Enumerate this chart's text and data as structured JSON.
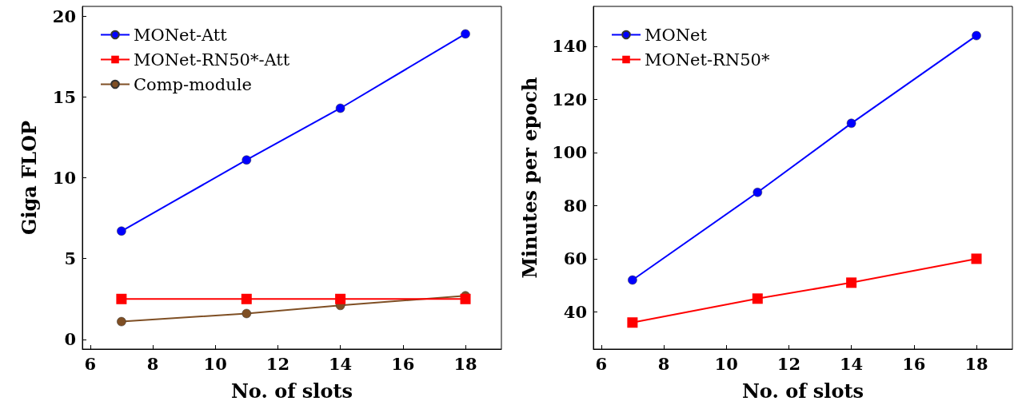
{
  "chart_data": [
    {
      "type": "line",
      "xlabel": "No. of slots",
      "ylabel": "Giga FLOP",
      "x": [
        7,
        11,
        14,
        18
      ],
      "xlim": [
        5.75,
        19.15
      ],
      "xticks": [
        6,
        8,
        10,
        12,
        14,
        16,
        18
      ],
      "ylim": [
        -0.6,
        20.6
      ],
      "yticks": [
        0,
        5,
        10,
        15,
        20
      ],
      "grid": false,
      "legend": "top left",
      "line_style": "solid",
      "series": [
        {
          "name": "MONet-Att",
          "color": "#0000ff",
          "marker": "circle",
          "values": [
            6.7,
            11.1,
            14.3,
            18.9
          ]
        },
        {
          "name": "MONet-RN50*-Att",
          "color": "#ff0000",
          "marker": "square",
          "values": [
            2.5,
            2.5,
            2.5,
            2.5
          ]
        },
        {
          "name": "Comp-module",
          "color": "#7f4f24",
          "marker": "circle",
          "values": [
            1.1,
            1.6,
            2.1,
            2.7
          ]
        }
      ]
    },
    {
      "type": "line",
      "xlabel": "No. of slots",
      "ylabel": "Minutes per epoch",
      "x": [
        7,
        11,
        14,
        18
      ],
      "xlim": [
        5.75,
        19.15
      ],
      "xticks": [
        6,
        8,
        10,
        12,
        14,
        16,
        18
      ],
      "ylim": [
        26,
        155
      ],
      "yticks": [
        40,
        60,
        80,
        100,
        120,
        140
      ],
      "grid": false,
      "legend": "top left",
      "line_style": "solid",
      "series": [
        {
          "name": "MONet",
          "color": "#0000ff",
          "marker": "circle",
          "values": [
            52,
            85,
            111,
            144
          ]
        },
        {
          "name": "MONet-RN50*",
          "color": "#ff0000",
          "marker": "square",
          "values": [
            36,
            45,
            51,
            60
          ]
        }
      ]
    }
  ]
}
